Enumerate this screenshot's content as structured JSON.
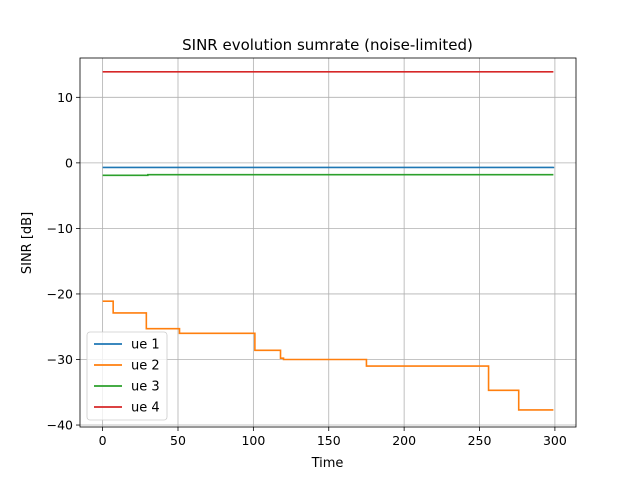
{
  "chart_data": {
    "type": "line",
    "title": "SINR evolution sumrate (noise-limited)",
    "xlabel": "Time",
    "ylabel": "SINR [dB]",
    "xlim": [
      -15,
      314
    ],
    "ylim": [
      -40.3,
      16
    ],
    "xticks": [
      0,
      50,
      100,
      150,
      200,
      250,
      300
    ],
    "yticks": [
      -40,
      -30,
      -20,
      -10,
      0,
      10
    ],
    "grid": true,
    "legend_position": "lower-left",
    "series": [
      {
        "name": "ue 1",
        "color": "#1f77b4",
        "step": true,
        "x": [
          0,
          299
        ],
        "y": [
          -0.7,
          -0.6
        ]
      },
      {
        "name": "ue 2",
        "color": "#ff7f0e",
        "step": true,
        "x": [
          0,
          7,
          29,
          51,
          101,
          118,
          120,
          175,
          256,
          276,
          299
        ],
        "y": [
          -21.1,
          -22.9,
          -25.3,
          -26.0,
          -28.6,
          -29.8,
          -30.0,
          -31.0,
          -34.7,
          -37.7,
          -37.7
        ]
      },
      {
        "name": "ue 3",
        "color": "#2ca02c",
        "step": true,
        "x": [
          0,
          30,
          299
        ],
        "y": [
          -1.9,
          -1.8,
          -1.8
        ]
      },
      {
        "name": "ue 4",
        "color": "#d62728",
        "step": true,
        "x": [
          0,
          299
        ],
        "y": [
          13.9,
          13.9
        ]
      }
    ]
  }
}
